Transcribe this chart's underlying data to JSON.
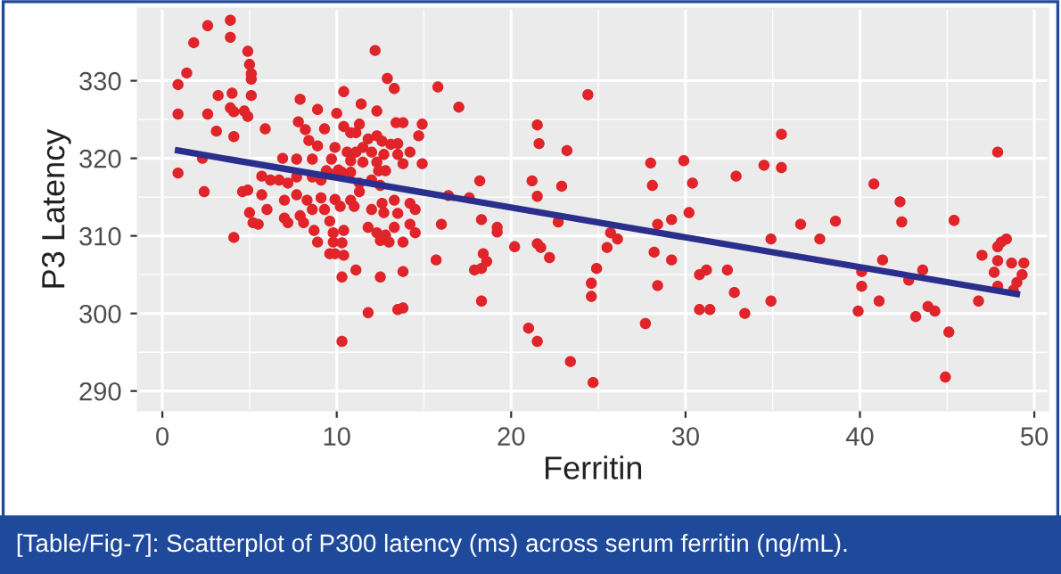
{
  "chart_data": {
    "type": "scatter",
    "xlabel": "Ferritin",
    "ylabel": "P3 Latency",
    "annotations": [
      "[Table/Fig-7]: Scatterplot of P300 latency (ms) across serum ferritin (ng/mL)."
    ],
    "xlim": [
      -1.4,
      50.8
    ],
    "ylim": [
      287.5,
      339.3
    ],
    "xticks": [
      0,
      10,
      20,
      30,
      40,
      50
    ],
    "yticks": [
      290,
      300,
      310,
      320,
      330
    ],
    "grid": true,
    "series": [
      {
        "marker": "circle",
        "color": "#e0242a",
        "x": [
          2.6,
          3.9,
          3.9,
          1.8,
          4.9,
          5.0,
          5.1,
          5.1,
          1.4,
          0.9,
          12.2,
          12.9,
          13.3,
          10.4,
          3.2,
          4.0,
          5.1,
          7.9,
          8.9,
          11.4,
          12.3,
          0.9,
          2.6,
          3.9,
          4.1,
          4.7,
          4.9,
          7.8,
          10.0,
          11.3,
          13.4,
          13.8,
          14.9,
          3.1,
          4.1,
          5.9,
          9.3,
          11.1,
          11.8,
          12.3,
          12.6,
          13.1,
          13.5,
          14.7,
          8.4,
          8.9,
          9.9,
          10.6,
          11.1,
          11.5,
          12.0,
          12.7,
          13.5,
          14.2,
          6.9,
          7.7,
          8.6,
          9.7,
          10.1,
          9.4,
          10.8,
          11.5,
          12.3,
          12.4,
          12.8,
          13.8,
          0.9,
          2.3,
          5.7,
          6.2,
          6.7,
          7.2,
          7.7,
          8.6,
          9.1,
          9.6,
          10.3,
          10.8,
          11.3,
          12.0,
          12.5,
          2.4,
          4.6,
          4.9,
          5.7,
          7.0,
          7.7,
          8.3,
          9.1,
          9.9,
          10.8,
          11.3,
          12.6,
          13.3,
          14.2,
          5.0,
          6.0,
          7.0,
          7.9,
          8.6,
          9.3,
          10.2,
          11.0,
          12.0,
          12.7,
          13.5,
          14.5,
          5.2,
          5.5,
          7.2,
          8.1,
          8.7,
          9.6,
          9.8,
          10.4,
          11.8,
          12.3,
          12.8,
          13.3,
          14.2,
          14.5,
          4.1,
          8.9,
          9.8,
          10.3,
          9.6,
          9.9,
          10.4,
          12.5,
          13.0,
          13.8,
          10.3,
          11.1,
          12.5,
          13.8,
          11.8,
          13.5,
          13.8,
          10.3,
          8.2,
          10.4,
          10.8,
          15.8,
          17.0,
          14.9,
          18.2,
          17.6,
          16.4,
          18.3,
          16.0,
          19.2,
          19.2,
          15.7,
          17.9,
          18.3,
          18.4,
          18.6,
          18.3,
          20.2,
          21.5,
          21.6,
          21.2,
          21.5,
          21.5,
          21.7,
          22.2,
          21.0,
          21.5,
          23.2,
          22.9,
          22.7,
          24.4,
          23.4,
          24.7,
          24.9,
          24.6,
          24.6,
          25.7,
          26.1,
          25.5,
          28.0,
          28.1,
          28.4,
          29.2,
          28.2,
          29.2,
          28.4,
          27.7,
          29.9,
          30.4,
          30.2,
          30.8,
          31.2,
          30.8,
          31.4,
          32.9,
          34.5,
          35.5,
          35.5,
          34.9,
          34.9,
          32.4,
          32.8,
          33.4,
          36.6,
          37.7,
          38.6,
          40.8,
          42.3,
          42.4,
          41.3,
          40.1,
          40.1,
          39.9,
          41.1,
          43.2,
          42.8,
          43.6,
          43.9,
          44.3,
          45.1,
          44.9,
          45.4,
          46.8,
          47.0,
          47.7,
          47.9,
          47.9,
          48.1,
          48.4,
          47.9,
          47.9,
          48.7,
          49.0,
          49.3,
          48.8,
          49.4
        ],
        "values": [
          337.1,
          337.8,
          335.6,
          334.9,
          333.8,
          332.1,
          330.9,
          330.2,
          331.0,
          329.5,
          333.9,
          330.3,
          329.0,
          328.6,
          328.1,
          328.4,
          328.1,
          327.6,
          326.3,
          327.0,
          326.1,
          325.7,
          325.7,
          326.5,
          326.0,
          326.1,
          325.4,
          324.7,
          325.8,
          324.4,
          324.6,
          324.6,
          324.4,
          323.5,
          322.8,
          323.8,
          323.8,
          323.3,
          322.5,
          322.9,
          322.2,
          321.8,
          321.9,
          322.9,
          322.3,
          321.6,
          321.4,
          320.8,
          320.8,
          321.4,
          320.8,
          320.5,
          320.5,
          320.8,
          320.0,
          319.9,
          319.9,
          319.9,
          318.5,
          318.4,
          319.7,
          319.5,
          319.5,
          318.4,
          318.4,
          319.3,
          318.1,
          320.0,
          317.7,
          317.2,
          317.2,
          316.8,
          317.6,
          317.6,
          317.2,
          318.0,
          318.2,
          318.2,
          316.8,
          317.2,
          316.5,
          315.7,
          315.7,
          315.9,
          315.3,
          314.6,
          315.3,
          314.6,
          314.9,
          314.7,
          314.6,
          315.7,
          314.2,
          314.6,
          314.2,
          313.0,
          313.4,
          312.3,
          312.6,
          313.4,
          313.4,
          313.8,
          313.8,
          313.4,
          313.0,
          312.9,
          313.4,
          311.7,
          311.5,
          311.7,
          311.7,
          310.7,
          311.9,
          310.4,
          310.7,
          311.1,
          310.4,
          310.1,
          311.1,
          311.5,
          310.4,
          309.8,
          309.2,
          309.2,
          309.1,
          307.7,
          307.7,
          307.5,
          309.4,
          309.2,
          309.2,
          304.7,
          305.6,
          304.7,
          305.4,
          300.1,
          300.5,
          300.7,
          296.4,
          323.7,
          324.1,
          323.3,
          329.2,
          326.6,
          319.3,
          317.1,
          314.9,
          315.2,
          312.1,
          311.5,
          311.1,
          310.5,
          306.9,
          305.6,
          305.8,
          307.7,
          306.7,
          301.6,
          308.6,
          324.3,
          321.9,
          317.1,
          315.1,
          309.0,
          308.5,
          307.2,
          298.1,
          296.4,
          321.0,
          316.4,
          311.8,
          328.2,
          293.8,
          291.1,
          305.8,
          303.9,
          302.2,
          310.4,
          309.6,
          308.5,
          319.4,
          316.5,
          311.5,
          312.1,
          307.9,
          306.9,
          303.6,
          298.7,
          319.7,
          316.8,
          313.0,
          305.0,
          305.6,
          300.5,
          300.5,
          317.7,
          319.1,
          323.1,
          318.8,
          309.6,
          301.6,
          305.6,
          302.7,
          300.0,
          311.5,
          309.6,
          311.9,
          316.7,
          314.4,
          311.8,
          306.9,
          305.4,
          303.5,
          300.3,
          301.6,
          299.6,
          304.3,
          305.6,
          300.9,
          300.3,
          297.6,
          291.8,
          312.0,
          301.6,
          307.5,
          305.3,
          306.8,
          308.6,
          309.2,
          309.6,
          303.5,
          320.8,
          306.5,
          304.0,
          305.0,
          303.0,
          306.5
        ]
      },
      {
        "type": "line",
        "color": "#2a2f8e",
        "x": [
          0.9,
          49.0
        ],
        "values": [
          321.0,
          302.5
        ]
      }
    ]
  }
}
